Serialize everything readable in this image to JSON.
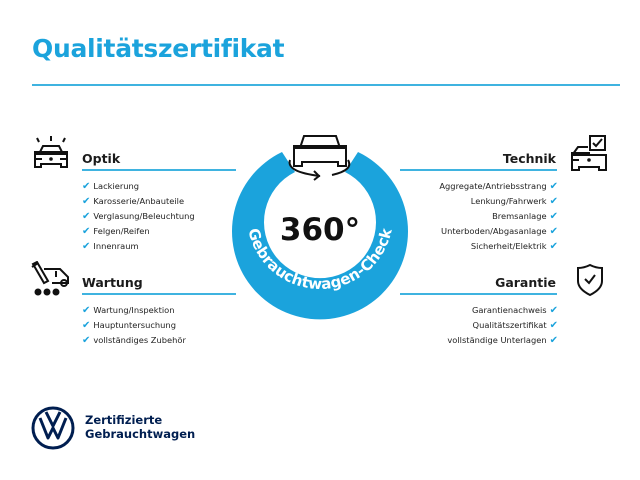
{
  "title": "Qualitätszertifikat",
  "center": {
    "value": "360°",
    "ring_text": "Gebrauchtwagen-Check",
    "ring_color": "#1ba3dc"
  },
  "sections": {
    "optik": {
      "title": "Optik",
      "icon": "car-lights-icon",
      "items": [
        "Lackierung",
        "Karosserie/Anbauteile",
        "Verglasung/Beleuchtung",
        "Felgen/Reifen",
        "Innenraum"
      ]
    },
    "wartung": {
      "title": "Wartung",
      "icon": "service-tools-icon",
      "items": [
        "Wartung/Inspektion",
        "Hauptuntersuchung",
        "vollständiges Zubehör"
      ]
    },
    "technik": {
      "title": "Technik",
      "icon": "car-checklist-icon",
      "items": [
        "Aggregate/Antriebsstrang",
        "Lenkung/Fahrwerk",
        "Bremsanlage",
        "Unterboden/Abgasanlage",
        "Sicherheit/Elektrik"
      ]
    },
    "garantie": {
      "title": "Garantie",
      "icon": "shield-check-icon",
      "items": [
        "Garantienachweis",
        "Qualitätszertifikat",
        "vollständige Unterlagen"
      ]
    }
  },
  "check_mark": "✔",
  "footer": {
    "line1": "Zertifizierte",
    "line2": "Gebrauchtwagen",
    "brand_color": "#001e50"
  }
}
